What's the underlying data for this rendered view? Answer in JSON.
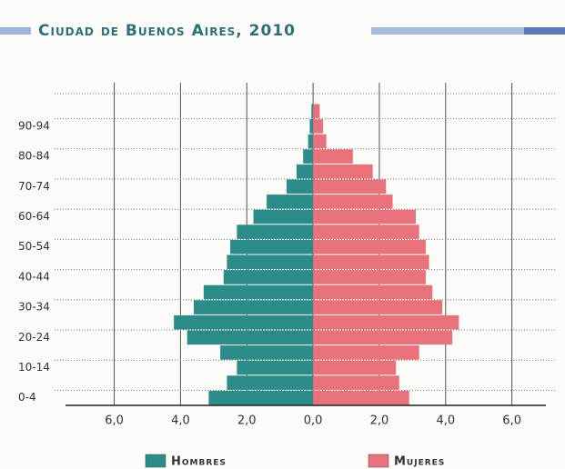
{
  "chart_data": {
    "type": "pyramid",
    "title": "Ciudad de Buenos Aires, 2010",
    "categories": [
      "0-4",
      null,
      "10-14",
      null,
      "20-24",
      null,
      "30-34",
      null,
      "40-44",
      null,
      "50-54",
      null,
      "60-64",
      null,
      "70-74",
      null,
      "80-84",
      null,
      "90-94",
      null
    ],
    "series": [
      {
        "name": "Hombres",
        "color": "#2b8c8a",
        "values": [
          3.15,
          2.6,
          2.3,
          2.8,
          3.8,
          4.2,
          3.6,
          3.3,
          2.7,
          2.6,
          2.5,
          2.3,
          1.8,
          1.4,
          0.8,
          0.5,
          0.3,
          0.15,
          0.1,
          0.05
        ]
      },
      {
        "name": "Mujeres",
        "color": "#e9717b",
        "values": [
          2.9,
          2.6,
          2.5,
          3.2,
          4.2,
          4.4,
          3.9,
          3.6,
          3.4,
          3.5,
          3.4,
          3.2,
          3.1,
          2.4,
          2.2,
          1.8,
          1.2,
          0.4,
          0.3,
          0.2
        ]
      }
    ],
    "xlim": [
      -7.8,
      7.3
    ],
    "xticks": [
      {
        "value": -6,
        "label": "6,0"
      },
      {
        "value": -4,
        "label": "4,0"
      },
      {
        "value": -2,
        "label": "2,0"
      },
      {
        "value": 0,
        "label": "0,0"
      },
      {
        "value": 2,
        "label": "2,0"
      },
      {
        "value": 4,
        "label": "4,0"
      },
      {
        "value": 6,
        "label": "6,0"
      }
    ],
    "grid": true
  }
}
